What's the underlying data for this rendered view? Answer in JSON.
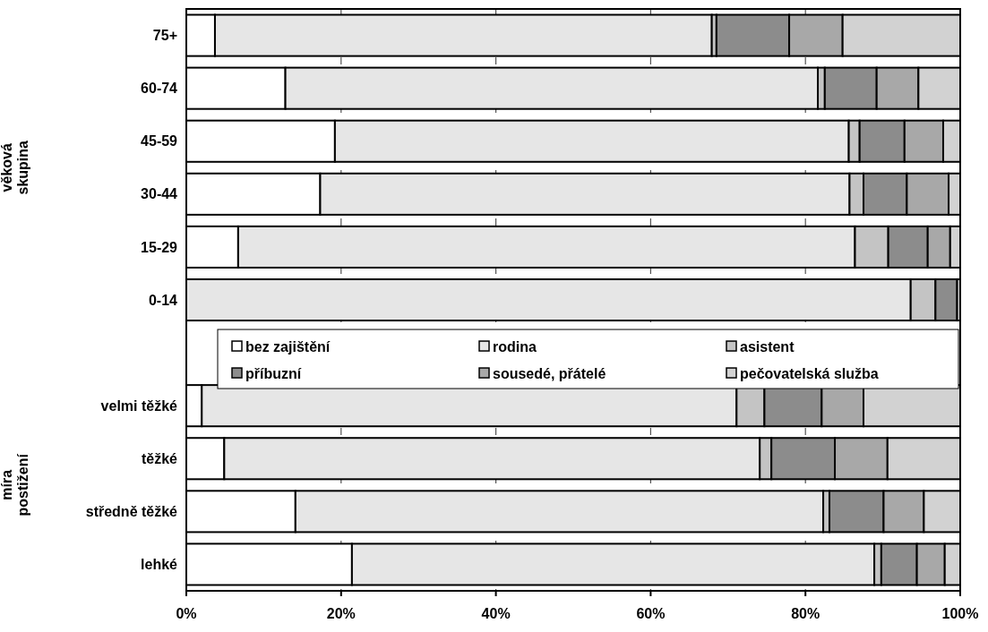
{
  "chart_data": {
    "type": "bar",
    "orientation": "horizontal",
    "stacked": true,
    "categories": [
      "75+",
      "60-74",
      "45-59",
      "30-44",
      "15-29",
      "0-14",
      null,
      "velmi těžké",
      "těžké",
      "středně těžké",
      "lehké"
    ],
    "series": [
      {
        "name": "bez zajištění",
        "color": "#ffffff",
        "values": [
          3.7,
          12.8,
          19.2,
          17.3,
          6.7,
          0,
          null,
          2.0,
          4.9,
          14.1,
          21.4
        ]
      },
      {
        "name": "rodina",
        "color": "#e6e6e6",
        "values": [
          64.2,
          68.8,
          66.4,
          68.4,
          79.7,
          93.6,
          null,
          69.1,
          69.2,
          68.2,
          67.5
        ]
      },
      {
        "name": "asistent",
        "color": "#c4c4c4",
        "values": [
          0.6,
          0.9,
          1.4,
          1.8,
          4.3,
          3.2,
          null,
          3.6,
          1.5,
          0.8,
          0.9
        ]
      },
      {
        "name": "příbuzní",
        "color": "#8c8c8c",
        "values": [
          9.4,
          6.7,
          5.8,
          5.6,
          5.1,
          2.8,
          null,
          7.4,
          8.2,
          7.0,
          4.6
        ]
      },
      {
        "name": "sousedé, přátelé",
        "color": "#a8a8a8",
        "values": [
          6.9,
          5.4,
          5.0,
          5.4,
          2.9,
          null,
          null,
          5.4,
          6.8,
          5.2,
          3.6
        ]
      },
      {
        "name": "pečovatelská služba",
        "color": "#d2d2d2",
        "values": [
          15.2,
          5.4,
          2.2,
          1.5,
          1.3,
          0.4,
          null,
          12.5,
          9.4,
          4.7,
          2.0
        ]
      }
    ],
    "xlim": [
      0,
      100
    ],
    "xticks": [
      {
        "value": 0,
        "label": "0%"
      },
      {
        "value": 20,
        "label": "20%"
      },
      {
        "value": 40,
        "label": "40%"
      },
      {
        "value": 60,
        "label": "60%"
      },
      {
        "value": 80,
        "label": "80%"
      },
      {
        "value": 100,
        "label": "100%"
      }
    ],
    "grid": "x",
    "legend": "center",
    "annotations": [
      "věková skupina",
      "míra postižení"
    ]
  }
}
